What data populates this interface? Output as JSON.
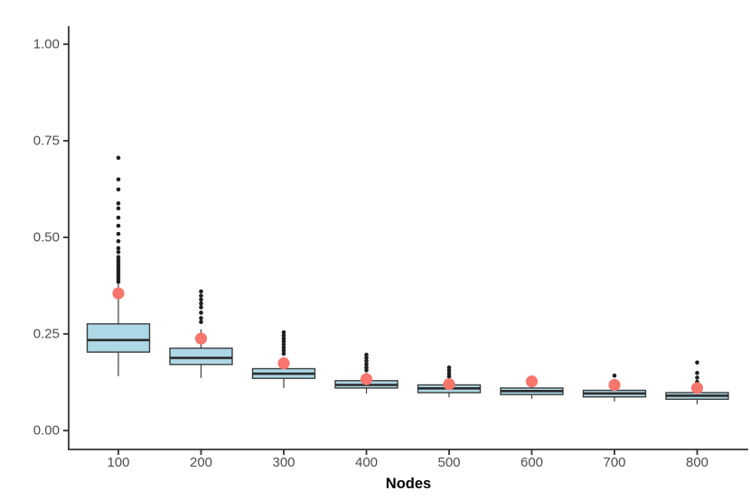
{
  "chart_data": {
    "type": "boxplot",
    "title": "",
    "xlabel": "Nodes",
    "ylabel": "",
    "x_tick_labels": [
      "100",
      "200",
      "300",
      "400",
      "500",
      "600",
      "700",
      "800"
    ],
    "y_tick_labels": [
      "0.00",
      "0.25",
      "0.50",
      "0.75",
      "1.00"
    ],
    "y_tick_values": [
      0.0,
      0.25,
      0.5,
      0.75,
      1.0
    ],
    "ylim": [
      0.0,
      1.05
    ],
    "grid": "off",
    "legend": "none",
    "series": [
      {
        "category": "100",
        "q1": 0.203,
        "median": 0.234,
        "q3": 0.276,
        "whisker_low": 0.141,
        "whisker_high": 0.38,
        "mean": 0.355,
        "outliers": [
          0.706,
          0.65,
          0.624,
          0.588,
          0.575,
          0.551,
          0.53,
          0.509,
          0.49,
          0.472,
          0.462,
          0.449,
          0.441,
          0.434,
          0.427,
          0.42,
          0.413,
          0.406,
          0.399,
          0.392,
          0.385
        ]
      },
      {
        "category": "200",
        "q1": 0.171,
        "median": 0.188,
        "q3": 0.213,
        "whisker_low": 0.136,
        "whisker_high": 0.262,
        "mean": 0.238,
        "outliers": [
          0.36,
          0.349,
          0.339,
          0.329,
          0.319,
          0.305,
          0.291,
          0.281
        ]
      },
      {
        "category": "300",
        "q1": 0.135,
        "median": 0.147,
        "q3": 0.16,
        "whisker_low": 0.11,
        "whisker_high": 0.186,
        "mean": 0.174,
        "outliers": [
          0.254,
          0.246,
          0.238,
          0.231,
          0.223,
          0.215,
          0.207,
          0.199
        ]
      },
      {
        "category": "400",
        "q1": 0.11,
        "median": 0.118,
        "q3": 0.129,
        "whisker_low": 0.096,
        "whisker_high": 0.15,
        "mean": 0.133,
        "outliers": [
          0.196,
          0.188,
          0.18,
          0.171,
          0.163,
          0.156
        ]
      },
      {
        "category": "500",
        "q1": 0.098,
        "median": 0.109,
        "q3": 0.118,
        "whisker_low": 0.086,
        "whisker_high": 0.132,
        "mean": 0.12,
        "outliers": [
          0.163,
          0.155,
          0.147,
          0.14
        ]
      },
      {
        "category": "600",
        "q1": 0.093,
        "median": 0.102,
        "q3": 0.11,
        "whisker_low": 0.082,
        "whisker_high": 0.121,
        "mean": 0.127,
        "outliers": []
      },
      {
        "category": "700",
        "q1": 0.087,
        "median": 0.096,
        "q3": 0.104,
        "whisker_low": 0.075,
        "whisker_high": 0.114,
        "mean": 0.118,
        "outliers": [
          0.142
        ]
      },
      {
        "category": "800",
        "q1": 0.081,
        "median": 0.09,
        "q3": 0.098,
        "whisker_low": 0.068,
        "whisker_high": 0.105,
        "mean": 0.11,
        "outliers": [
          0.176,
          0.149,
          0.137,
          0.126
        ]
      }
    ],
    "colors": {
      "box_fill": "#ADD8E6",
      "box_stroke": "#3C3C3C",
      "median_stroke": "#2B2B2B",
      "whisker_stroke": "#3C3C3C",
      "outlier_fill": "#1F1F1F",
      "mean_fill": "#F8766D",
      "axis_line": "#333333",
      "tick_label_color": "#4D4D4D",
      "axis_title_color": "#000000",
      "background": "#FFFFFF"
    }
  }
}
